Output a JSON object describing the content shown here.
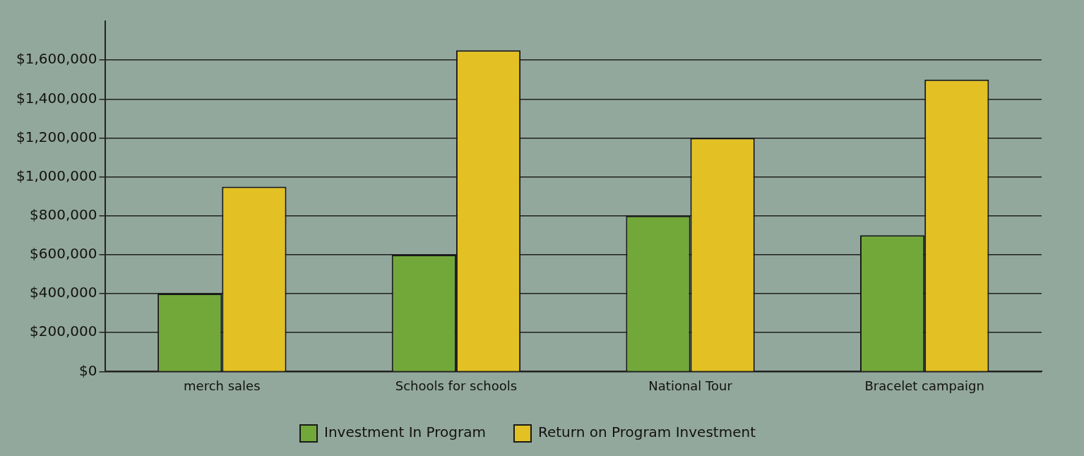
{
  "chart_data": {
    "type": "bar",
    "categories": [
      "merch sales",
      "Schools for schools",
      "National Tour",
      "Bracelet campaign"
    ],
    "series": [
      {
        "name": "Investment In Program",
        "color": "#72a83a",
        "values": [
          400000,
          600000,
          800000,
          700000
        ]
      },
      {
        "name": "Return on Program Investment",
        "color": "#e3c124",
        "values": [
          950000,
          1650000,
          1200000,
          1500000
        ]
      }
    ],
    "ylim": [
      0,
      1800000
    ],
    "yticks": [
      {
        "value": 0,
        "label": "$0"
      },
      {
        "value": 200000,
        "label": "$200,000"
      },
      {
        "value": 400000,
        "label": "$400,000"
      },
      {
        "value": 600000,
        "label": "$600,000"
      },
      {
        "value": 800000,
        "label": "$800,000"
      },
      {
        "value": 1000000,
        "label": "$1,000,000"
      },
      {
        "value": 1200000,
        "label": "$1,200,000"
      },
      {
        "value": 1400000,
        "label": "$1,400,000"
      },
      {
        "value": 1600000,
        "label": "$1,600,000"
      }
    ],
    "grid": true,
    "legend": "bottom"
  }
}
